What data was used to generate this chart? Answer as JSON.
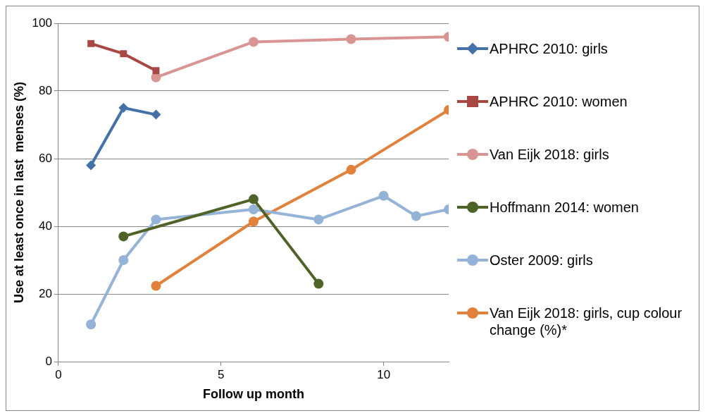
{
  "chart_data": {
    "type": "line",
    "xlabel": "Follow up month",
    "ylabel": "Use at least once in last  menses (%)",
    "xlim": [
      0,
      12
    ],
    "xticks": [
      0,
      5,
      10
    ],
    "ylim": [
      0,
      100
    ],
    "yticks": [
      0,
      20,
      40,
      60,
      80,
      100
    ],
    "grid": "y",
    "legend": "right",
    "series": [
      {
        "name": "APHRC 2010: girls",
        "color": "#4472a8",
        "marker": "diamond",
        "x": [
          1,
          2,
          3
        ],
        "values": [
          58,
          75,
          73
        ]
      },
      {
        "name": "APHRC 2010: women",
        "color": "#a94743",
        "marker": "square",
        "x": [
          1,
          2,
          3
        ],
        "values": [
          94,
          91,
          86
        ]
      },
      {
        "name": "Van Eijk 2018: girls",
        "color": "#d99594",
        "marker": "circle",
        "x": [
          3,
          6,
          9,
          12
        ],
        "values": [
          84,
          94.5,
          95.3,
          96
        ]
      },
      {
        "name": "Hoffmann 2014: women",
        "color": "#4f6228",
        "marker": "circle",
        "x": [
          2,
          6,
          8
        ],
        "values": [
          37,
          48,
          23
        ]
      },
      {
        "name": "Oster 2009: girls",
        "color": "#95b3d7",
        "marker": "circle",
        "x": [
          1,
          2,
          3,
          6,
          8,
          10,
          11,
          12
        ],
        "values": [
          11,
          30,
          42,
          45,
          42,
          49,
          43,
          45
        ]
      },
      {
        "name": "Van Eijk 2018: girls, cup colour change (%)*",
        "color": "#e0823b",
        "marker": "circle",
        "x": [
          3,
          6,
          9,
          12
        ],
        "values": [
          22.4,
          41.4,
          56.7,
          74.4
        ]
      }
    ]
  }
}
